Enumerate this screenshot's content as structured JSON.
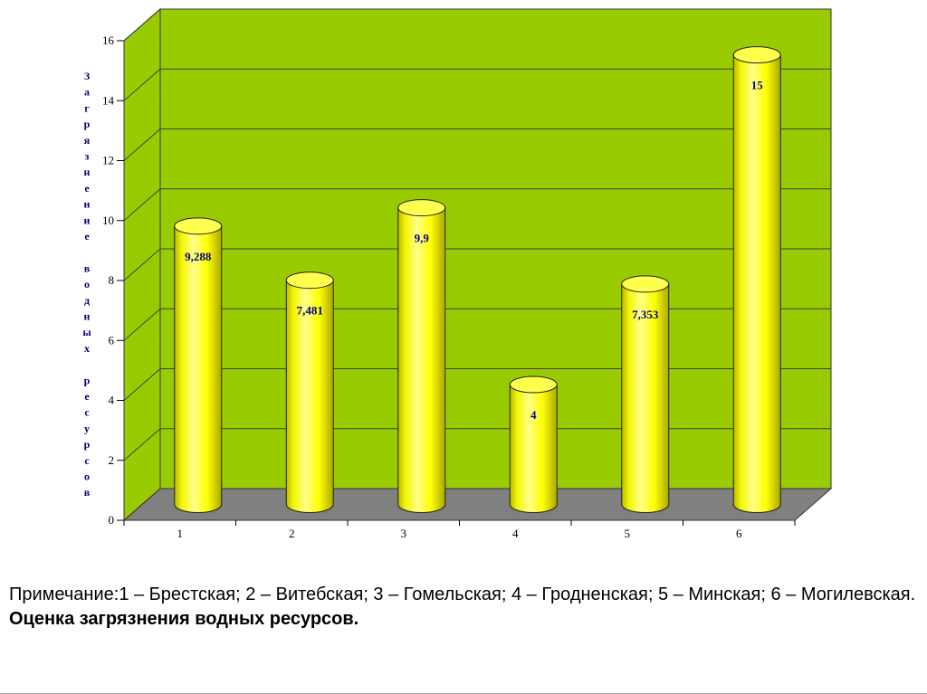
{
  "chart_data": {
    "type": "bar",
    "subtype": "3d-cylinder",
    "categories": [
      "1",
      "2",
      "3",
      "4",
      "5",
      "6"
    ],
    "values": [
      9.288,
      7.481,
      9.9,
      4,
      7.353,
      15
    ],
    "value_labels": [
      "9,288",
      "7,481",
      "9,9",
      "4",
      "7,353",
      "15"
    ],
    "title": "",
    "xlabel": "",
    "ylabel": "Загрязнение водных ресурсов",
    "ylim": [
      0,
      16
    ],
    "ytick_step": 2,
    "yticks": [
      "0",
      "2",
      "4",
      "6",
      "8",
      "10",
      "12",
      "14",
      "16"
    ],
    "grid": true,
    "legend": "none",
    "colors": {
      "wall": "#99CC00",
      "floor": "#808080",
      "bar": "#FFFF00",
      "bar_top": "#FFFF4D",
      "bar_edge": "#222222",
      "gridline": "#404040",
      "axis_text": "#000000",
      "label": "#000080"
    }
  },
  "notes": {
    "legend_note": "Примечание:1 – Брестская; 2 – Витебская; 3 – Гомельская; 4 – Гродненская; 5 – Минская; 6 – Могилевская.",
    "caption_bold": "Оценка загрязнения водных ресурсов."
  }
}
